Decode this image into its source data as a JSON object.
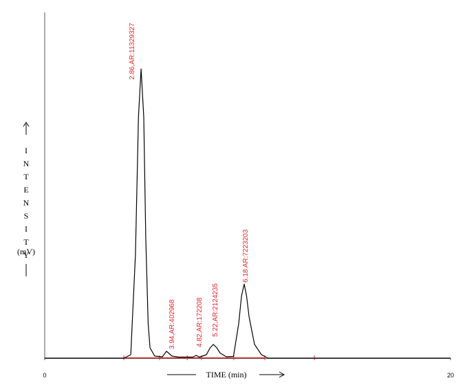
{
  "chart_data": {
    "type": "line",
    "x_label": "TIME (min)",
    "y_label": "INTENSITY",
    "y_unit": "(mV)",
    "color": "#000000",
    "baseline_color": "#e8242a",
    "xlim": [
      0,
      20
    ],
    "xticks": [
      0,
      20
    ],
    "ylim": [
      0,
      100
    ],
    "x": [
      0,
      3.9,
      4.24,
      4.47,
      4.62,
      4.75,
      4.88,
      4.98,
      5.1,
      5.19,
      5.42,
      5.8,
      6.0,
      6.27,
      6.6,
      7.3,
      7.46,
      7.62,
      7.97,
      8.15,
      8.31,
      8.48,
      8.64,
      8.95,
      9.3,
      9.56,
      9.7,
      9.83,
      9.95,
      10.07,
      10.34,
      10.68,
      11.0,
      20
    ],
    "values": [
      0,
      0,
      1,
      30,
      70,
      84,
      70,
      35,
      10,
      3,
      0.6,
      0.4,
      2,
      0.6,
      0.3,
      0.3,
      0.8,
      0.3,
      1,
      3,
      4,
      3,
      1.5,
      0.4,
      0.5,
      10,
      18,
      21.5,
      18,
      12,
      4,
      1,
      0,
      0
    ],
    "baseline_marks": [
      3.9,
      5.66,
      7.02,
      7.73,
      9.32,
      10.85,
      13.29
    ],
    "annotations": [
      "2.86,AR:11329327",
      "3.94,AR:402968",
      "4.82,AR:172208",
      "5.22,AR:2124235",
      "6.18  AR:7223203"
    ]
  }
}
